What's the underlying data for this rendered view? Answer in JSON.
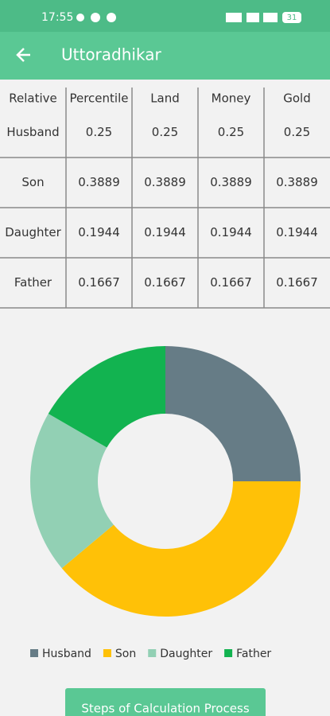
{
  "status_bar": {
    "time": "17:55",
    "battery": "31"
  },
  "app_bar": {
    "title": "Uttoradhikar"
  },
  "table": {
    "header": [
      "Relative",
      "Percentile",
      "Land",
      "Money",
      "Gold"
    ],
    "rows": [
      [
        "Husband",
        "0.25",
        "0.25",
        "0.25",
        "0.25"
      ],
      [
        "Son",
        "0.3889",
        "0.3889",
        "0.3889",
        "0.3889"
      ],
      [
        "Daughter",
        "0.1944",
        "0.1944",
        "0.1944",
        "0.1944"
      ],
      [
        "Father",
        "0.1667",
        "0.1667",
        "0.1667",
        "0.1667"
      ]
    ]
  },
  "chart_data": {
    "type": "pie",
    "categories": [
      "Husband",
      "Son",
      "Daughter",
      "Father"
    ],
    "values": [
      0.25,
      0.3889,
      0.1944,
      0.1667
    ],
    "colors": [
      "#667c86",
      "#ffc107",
      "#92d0b4",
      "#12b350"
    ]
  },
  "button": {
    "label": "Steps of Calculation Process"
  }
}
